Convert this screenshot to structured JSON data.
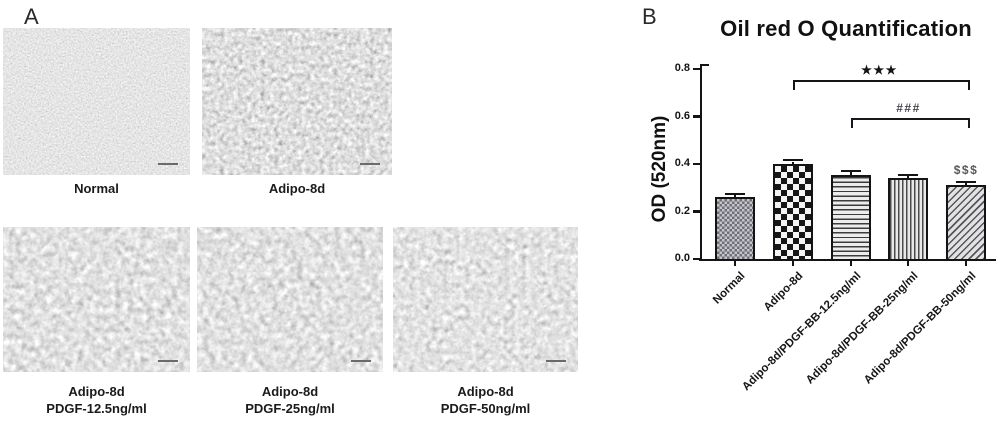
{
  "panel_a": {
    "label": "A",
    "micrographs": [
      {
        "id": "normal",
        "caption_lines": [
          "Normal"
        ]
      },
      {
        "id": "adipo-8d",
        "caption_lines": [
          "Adipo-8d"
        ]
      },
      {
        "id": "adipo-8d-pdgf-12.5",
        "caption_lines": [
          "Adipo-8d",
          "PDGF-12.5ng/ml"
        ]
      },
      {
        "id": "adipo-8d-pdgf-25",
        "caption_lines": [
          "Adipo-8d",
          "PDGF-25ng/ml"
        ]
      },
      {
        "id": "adipo-8d-pdgf-50",
        "caption_lines": [
          "Adipo-8d",
          "PDGF-50ng/ml"
        ]
      }
    ]
  },
  "panel_b": {
    "label": "B"
  },
  "chart_data": {
    "type": "bar",
    "title": "Oil red O Quantification",
    "ylabel": "OD (520nm)",
    "xlabel": "",
    "categories": [
      "Normal",
      "Adipo-8d",
      "Adipo-8d/PDGF-BB-12.5ng/ml",
      "Adipo-8d/PDGF-BB-25ng/ml",
      "Adipo-8d/PDGF-BB-50ng/ml"
    ],
    "values": [
      0.26,
      0.4,
      0.355,
      0.34,
      0.31
    ],
    "errors": [
      0.006,
      0.008,
      0.006,
      0.005,
      0.006
    ],
    "ylim": [
      0,
      0.8
    ],
    "yticks": [
      "0.0",
      "0.2",
      "0.4",
      "0.6",
      "0.8"
    ],
    "grid": false,
    "legend": false,
    "bar_patterns": [
      "fine-checker",
      "checker",
      "hlines",
      "vlines",
      "diagonal"
    ],
    "bar_outline_color": "#141414",
    "annotations": [
      {
        "kind": "bracket",
        "label": "★★★",
        "from_index": 1,
        "to_index": 4,
        "y": 0.755,
        "color": "#141414",
        "label_color": "#141414"
      },
      {
        "kind": "bracket",
        "label": "###",
        "from_index": 2,
        "to_index": 4,
        "y": 0.592,
        "color": "#17171d",
        "label_color": "#45454f"
      },
      {
        "kind": "label",
        "label": "$$$",
        "index": 4,
        "y": 0.345,
        "color": "#5a5a5e"
      }
    ]
  }
}
